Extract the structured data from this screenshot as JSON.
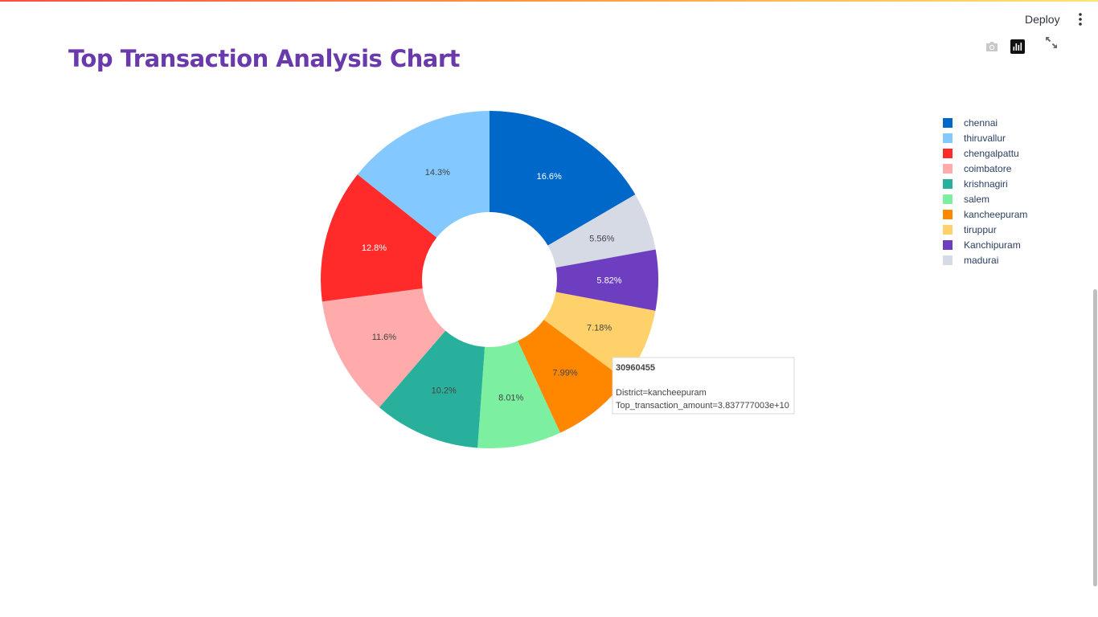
{
  "header": {
    "deploy_label": "Deploy"
  },
  "page": {
    "title": "Top Transaction Analysis Chart"
  },
  "modebar": {
    "icons": [
      "camera-icon",
      "plotly-logo-icon",
      "fullscreen-icon"
    ]
  },
  "chart_data": {
    "type": "pie",
    "hole": true,
    "sort": false,
    "legend_position": "right",
    "slices": [
      {
        "label": "chennai",
        "percent_label": "16.6%",
        "value": 16.6,
        "color": "#0068c9",
        "text_color": "#ffffff"
      },
      {
        "label": "madurai",
        "percent_label": "5.56%",
        "value": 5.56,
        "color": "#d5dae5",
        "text_color": "#444444"
      },
      {
        "label": "Kanchipuram",
        "percent_label": "5.82%",
        "value": 5.82,
        "color": "#6d3fc0",
        "text_color": "#ffffff"
      },
      {
        "label": "tiruppur",
        "percent_label": "7.18%",
        "value": 7.18,
        "color": "#ffd16a",
        "text_color": "#444444"
      },
      {
        "label": "kancheepuram",
        "percent_label": "7.99%",
        "value": 7.99,
        "color": "#ff8700",
        "text_color": "#444444"
      },
      {
        "label": "salem",
        "percent_label": "8.01%",
        "value": 8.01,
        "color": "#7defa1",
        "text_color": "#444444"
      },
      {
        "label": "krishnagiri",
        "percent_label": "10.2%",
        "value": 10.2,
        "color": "#29b09d",
        "text_color": "#444444"
      },
      {
        "label": "coimbatore",
        "percent_label": "11.6%",
        "value": 11.6,
        "color": "#ffabab",
        "text_color": "#444444"
      },
      {
        "label": "chengalpattu",
        "percent_label": "12.8%",
        "value": 12.8,
        "color": "#ff2b2b",
        "text_color": "#ffffff"
      },
      {
        "label": "thiruvallur",
        "percent_label": "14.3%",
        "value": 14.3,
        "color": "#83c9ff",
        "text_color": "#444444"
      }
    ],
    "legend": [
      "chennai",
      "thiruvallur",
      "chengalpattu",
      "coimbatore",
      "krishnagiri",
      "salem",
      "kancheepuram",
      "tiruppur",
      "Kanchipuram",
      "madurai"
    ],
    "tooltip": {
      "title": "30960455",
      "line1": "District=kancheepuram",
      "line2": "Top_transaction_amount=3.837777003e+10"
    }
  }
}
